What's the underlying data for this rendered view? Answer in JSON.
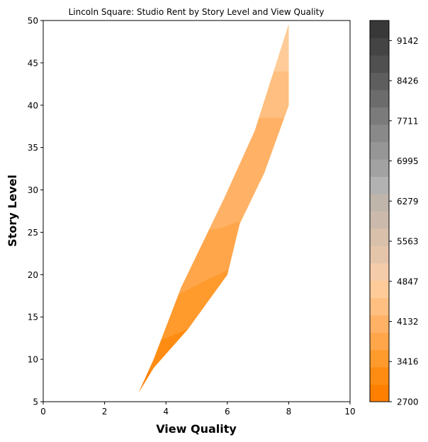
{
  "chart_data": {
    "type": "contourf",
    "title": "Lincoln Square: Studio Rent by Story Level and View Quality",
    "xlabel": "View Quality",
    "ylabel": "Story Level",
    "xlim": [
      0,
      10
    ],
    "ylim": [
      5,
      50
    ],
    "xticks": [
      0,
      2,
      4,
      6,
      8,
      10
    ],
    "yticks": [
      5,
      10,
      15,
      20,
      25,
      30,
      35,
      40,
      45,
      50
    ],
    "grid": false,
    "data_region": {
      "left_edge": [
        [
          3.1,
          6
        ],
        [
          3.6,
          10
        ],
        [
          4.5,
          18.5
        ],
        [
          5.9,
          29
        ],
        [
          6.9,
          37
        ],
        [
          8,
          49.5
        ]
      ],
      "right_edge": [
        [
          8,
          49.5
        ],
        [
          8,
          40
        ],
        [
          7.2,
          32
        ],
        [
          6.4,
          26
        ],
        [
          6.0,
          20
        ],
        [
          4.7,
          13.5
        ],
        [
          3.6,
          9
        ],
        [
          3.1,
          6
        ]
      ]
    },
    "contour_bands": [
      {
        "range": [
          2700,
          2979
        ],
        "lower_boundary": [
          [
            3,
            5
          ],
          [
            10,
            5
          ]
        ]
      },
      {
        "range": [
          2979,
          3258
        ],
        "lower_boundary": [
          [
            3,
            8.5
          ],
          [
            10,
            8.5
          ]
        ]
      },
      {
        "range": [
          3258,
          3537
        ],
        "lower_boundary": [
          [
            3,
            11
          ],
          [
            5,
            14
          ],
          [
            10,
            14
          ]
        ]
      },
      {
        "range": [
          3537,
          3816
        ],
        "lower_boundary": [
          [
            3,
            15
          ],
          [
            4.6,
            18
          ],
          [
            5.4,
            19.5
          ],
          [
            6,
            20.5
          ],
          [
            10,
            20.5
          ]
        ]
      },
      {
        "range": [
          3816,
          4095
        ],
        "lower_boundary": [
          [
            3,
            24
          ],
          [
            5.8,
            25.5
          ],
          [
            6.3,
            26.2
          ],
          [
            10,
            26.2
          ]
        ]
      },
      {
        "range": [
          4095,
          4374
        ],
        "lower_boundary": [
          [
            3,
            31
          ],
          [
            6.5,
            32
          ],
          [
            10,
            32
          ]
        ]
      },
      {
        "range": [
          4374,
          4653
        ],
        "lower_boundary": [
          [
            3,
            38
          ],
          [
            7.0,
            38.5
          ],
          [
            10,
            38.5
          ]
        ]
      },
      {
        "range": [
          4653,
          4932
        ],
        "lower_boundary": [
          [
            3,
            44
          ],
          [
            10,
            44
          ]
        ]
      }
    ],
    "colorbar": {
      "min": 2700,
      "max": 9500,
      "tick_labels": [
        "2700",
        "3416",
        "4132",
        "4847",
        "5563",
        "6279",
        "6995",
        "7711",
        "8426",
        "9142"
      ],
      "tick_values": [
        2700,
        3416,
        4132,
        4847,
        5563,
        6279,
        6995,
        7711,
        8426,
        9142
      ],
      "colors": [
        "#ff8000",
        "#ff8c12",
        "#ff9a2d",
        "#ffa64a",
        "#ffb266",
        "#ffbf80",
        "#ffcc99",
        "#f5ccaa",
        "#e5c5aa",
        "#d8c0aa",
        "#cbbaab",
        "#bfb5ab",
        "#b2b2b2",
        "#a2a2a2",
        "#969696",
        "#898989",
        "#7b7b7b",
        "#6c6c6c",
        "#5e5e5e",
        "#505050",
        "#444444",
        "#383838"
      ]
    }
  }
}
